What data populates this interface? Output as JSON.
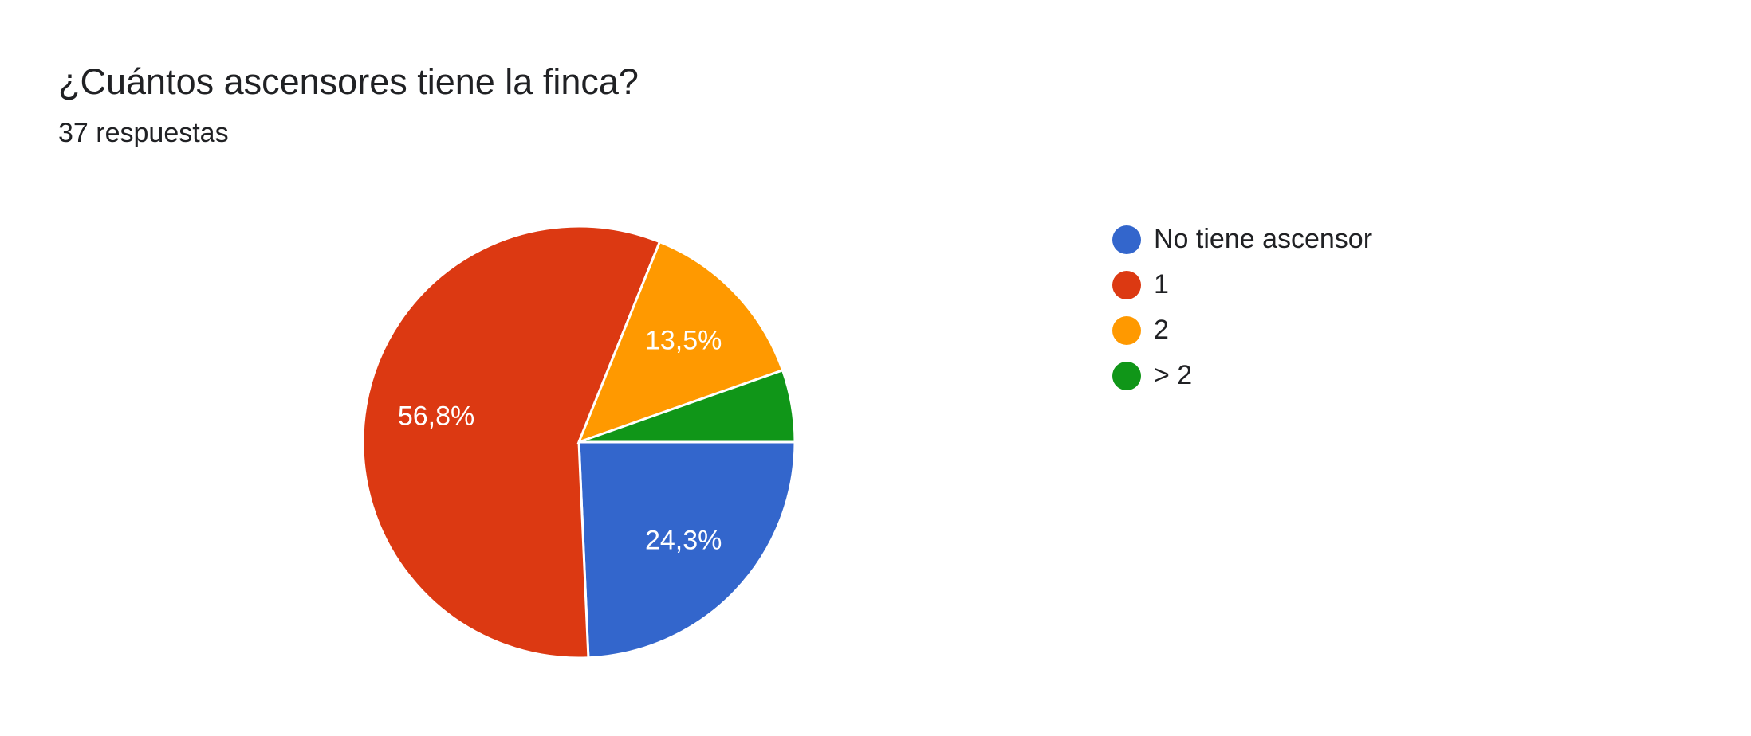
{
  "chart_data": {
    "type": "pie",
    "title": "¿Cuántos ascensores tiene la finca?",
    "subtitle": "37 respuestas",
    "categories": [
      "No tiene ascensor",
      "1",
      "2",
      "> 2"
    ],
    "values": [
      24.3,
      56.8,
      13.5,
      5.4
    ],
    "value_labels": [
      "24,3%",
      "56,8%",
      "13,5%",
      null
    ],
    "colors": [
      "#3366cc",
      "#dc3912",
      "#ff9900",
      "#109618"
    ],
    "legend": "right"
  }
}
